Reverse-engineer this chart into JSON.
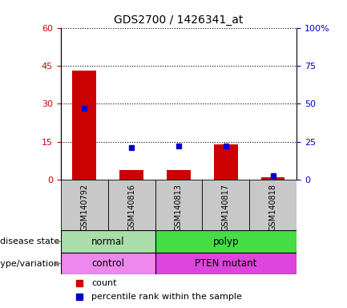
{
  "title": "GDS2700 / 1426341_at",
  "samples": [
    "GSM140792",
    "GSM140816",
    "GSM140813",
    "GSM140817",
    "GSM140818"
  ],
  "counts": [
    43,
    4,
    4,
    14,
    1
  ],
  "percentiles": [
    47,
    21,
    22,
    22,
    3
  ],
  "left_ylim": [
    0,
    60
  ],
  "left_yticks": [
    0,
    15,
    30,
    45,
    60
  ],
  "right_ylim": [
    0,
    100
  ],
  "right_yticks": [
    0,
    25,
    50,
    75,
    100
  ],
  "right_yticklabels": [
    "0",
    "25",
    "50",
    "75",
    "100%"
  ],
  "bar_color": "#cc0000",
  "dot_color": "#0000cc",
  "left_tick_color": "#cc0000",
  "right_tick_color": "#0000cc",
  "normal_color": "#aaddaa",
  "polyp_color": "#44dd44",
  "control_color": "#ee88ee",
  "pten_color": "#dd44dd",
  "xtick_bg_color": "#c8c8c8",
  "legend_items": [
    {
      "label": "count",
      "color": "#cc0000"
    },
    {
      "label": "percentile rank within the sample",
      "color": "#0000cc"
    }
  ],
  "bar_width": 0.5,
  "background_color": "#ffffff"
}
